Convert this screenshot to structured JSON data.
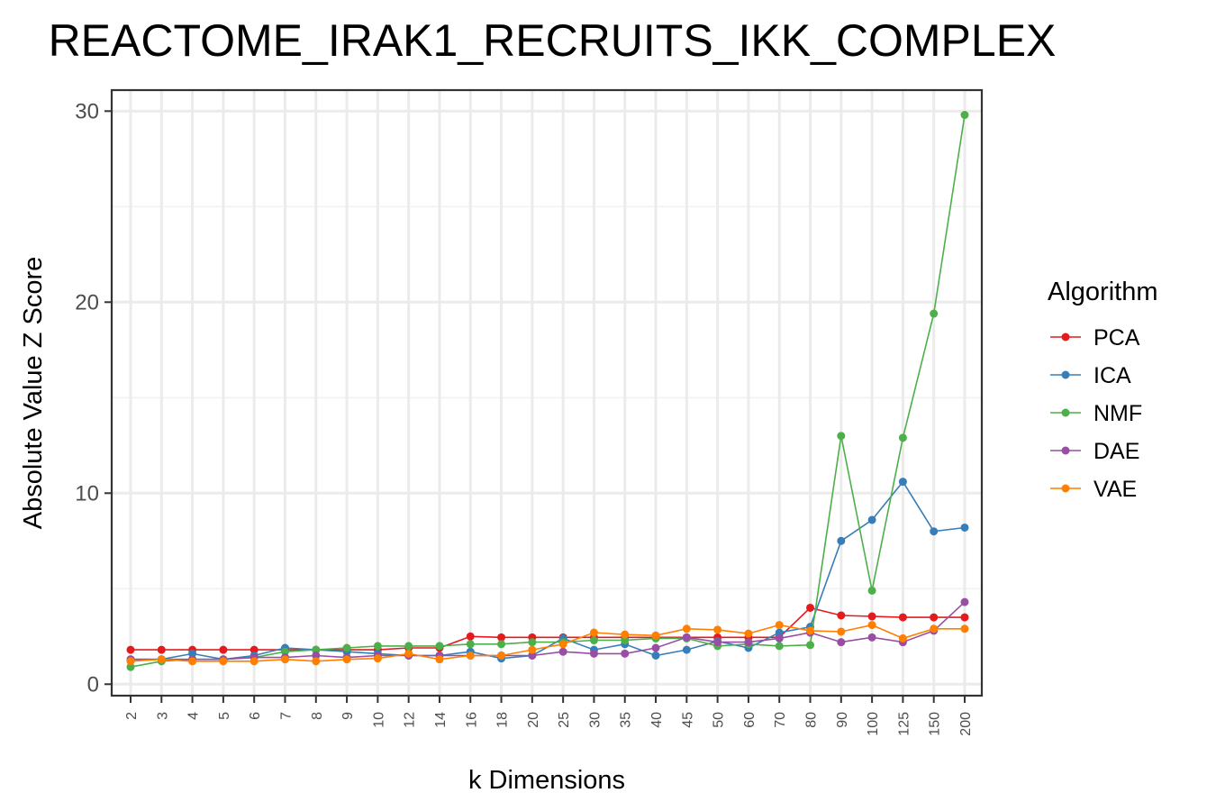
{
  "chart_data": {
    "type": "line",
    "title": "REACTOME_IRAK1_RECRUITS_IKK_COMPLEX",
    "xlabel": "k Dimensions",
    "ylabel": "Absolute Value Z Score",
    "categories": [
      "2",
      "3",
      "4",
      "5",
      "6",
      "7",
      "8",
      "9",
      "10",
      "12",
      "14",
      "16",
      "18",
      "20",
      "25",
      "30",
      "35",
      "40",
      "45",
      "50",
      "60",
      "70",
      "80",
      "90",
      "100",
      "125",
      "150",
      "200"
    ],
    "ylim": [
      -0.6,
      31.1
    ],
    "yticks": [
      0,
      10,
      20,
      30
    ],
    "grid": true,
    "legend": {
      "title": "Algorithm",
      "position": "right"
    },
    "series": [
      {
        "name": "PCA",
        "color": "#e41a1c",
        "values": [
          1.8,
          1.8,
          1.8,
          1.8,
          1.8,
          1.8,
          1.8,
          1.8,
          1.8,
          1.9,
          1.9,
          2.5,
          2.45,
          2.45,
          2.45,
          2.45,
          2.45,
          2.45,
          2.45,
          2.45,
          2.45,
          2.45,
          4.0,
          3.6,
          3.55,
          3.5,
          3.5,
          3.5
        ]
      },
      {
        "name": "ICA",
        "color": "#377eb8",
        "values": [
          1.3,
          1.3,
          1.6,
          1.3,
          1.5,
          1.9,
          1.8,
          1.7,
          1.6,
          1.5,
          1.5,
          1.7,
          1.35,
          1.5,
          2.4,
          1.8,
          2.1,
          1.5,
          1.8,
          2.25,
          1.9,
          2.7,
          3.0,
          7.5,
          8.6,
          10.6,
          8.0,
          8.2
        ]
      },
      {
        "name": "NMF",
        "color": "#4daf4a",
        "values": [
          0.9,
          1.2,
          1.3,
          1.3,
          1.4,
          1.7,
          1.8,
          1.9,
          2.0,
          2.0,
          2.0,
          2.1,
          2.1,
          2.2,
          2.2,
          2.3,
          2.3,
          2.4,
          2.4,
          2.0,
          2.1,
          2.0,
          2.05,
          13.0,
          4.9,
          12.9,
          19.4,
          29.8
        ]
      },
      {
        "name": "DAE",
        "color": "#984ea3",
        "values": [
          1.3,
          1.3,
          1.3,
          1.3,
          1.4,
          1.4,
          1.5,
          1.4,
          1.5,
          1.5,
          1.5,
          1.5,
          1.5,
          1.5,
          1.7,
          1.6,
          1.6,
          1.9,
          2.45,
          2.2,
          2.2,
          2.4,
          2.7,
          2.2,
          2.45,
          2.2,
          2.8,
          4.3
        ]
      },
      {
        "name": "VAE",
        "color": "#ff7f00",
        "values": [
          1.2,
          1.3,
          1.2,
          1.2,
          1.2,
          1.3,
          1.2,
          1.3,
          1.35,
          1.6,
          1.3,
          1.5,
          1.5,
          1.8,
          2.1,
          2.7,
          2.6,
          2.55,
          2.9,
          2.85,
          2.65,
          3.1,
          2.8,
          2.75,
          3.1,
          2.4,
          2.9,
          2.9
        ]
      }
    ]
  }
}
